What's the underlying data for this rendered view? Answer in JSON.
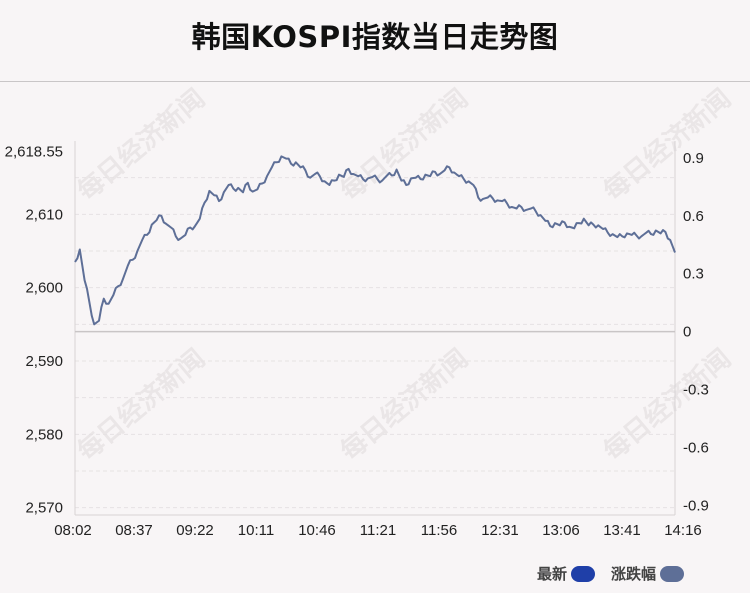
{
  "title": "韩国KOSPI指数当日走势图",
  "watermark": "每日经济新闻",
  "legend": [
    {
      "label": "最新",
      "color": "#1f3fa8"
    },
    {
      "label": "涨跌幅",
      "color": "#5e6f97"
    }
  ],
  "chart_data": {
    "type": "line",
    "title": "韩国KOSPI指数当日走势图",
    "x_ticks": [
      "08:02",
      "08:37",
      "09:22",
      "10:11",
      "10:46",
      "11:21",
      "11:56",
      "12:31",
      "13:06",
      "13:41",
      "14:16"
    ],
    "y_left_ticks": [
      "2,618.55",
      "2,610",
      "2,600",
      "2,590",
      "2,580",
      "2,570"
    ],
    "y_left_tick_values": [
      2618.55,
      2610,
      2600,
      2590,
      2580,
      2570
    ],
    "y_right_ticks": [
      "0.9",
      "0.6",
      "0.3",
      "0",
      "-0.3",
      "-0.6",
      "-0.9"
    ],
    "y_right_tick_values": [
      0.9,
      0.6,
      0.3,
      0,
      -0.3,
      -0.6,
      -0.9
    ],
    "ylim_left": [
      2569,
      2620
    ],
    "baseline": 2594,
    "grid": true,
    "legend_position": "bottom-right",
    "series": [
      {
        "name": "最新",
        "color": "#5e6f97",
        "x": [
          "08:02",
          "08:05",
          "08:08",
          "08:11",
          "08:14",
          "08:17",
          "08:20",
          "08:23",
          "08:26",
          "08:29",
          "08:32",
          "08:35",
          "08:38",
          "08:41",
          "08:44",
          "08:47",
          "08:50",
          "08:53",
          "08:56",
          "08:59",
          "09:02",
          "09:05",
          "09:08",
          "09:11",
          "09:14",
          "09:17",
          "09:20",
          "09:23",
          "09:26",
          "09:29",
          "09:32",
          "09:35",
          "09:38",
          "09:41",
          "09:44",
          "09:47",
          "09:50",
          "09:53",
          "09:56",
          "09:59",
          "10:02",
          "10:05",
          "10:08",
          "10:11",
          "10:14",
          "10:17",
          "10:20",
          "10:23",
          "10:26",
          "10:29",
          "10:32",
          "10:35",
          "10:38",
          "10:41",
          "10:44",
          "10:47",
          "10:50",
          "10:53",
          "10:56",
          "10:59",
          "11:02",
          "11:05",
          "11:08",
          "11:11",
          "11:14",
          "11:17",
          "11:20",
          "11:23",
          "11:26",
          "11:29",
          "11:32",
          "11:35",
          "11:38",
          "11:41",
          "11:44",
          "11:47",
          "11:50",
          "11:53",
          "11:56",
          "11:59",
          "12:02",
          "12:05",
          "12:08",
          "12:11",
          "12:14",
          "12:17",
          "12:20",
          "12:23",
          "12:26",
          "12:29",
          "12:32",
          "12:35",
          "12:38",
          "12:41",
          "12:44",
          "12:47",
          "12:50",
          "12:53",
          "12:56",
          "12:59",
          "13:02",
          "13:05",
          "13:08",
          "13:11",
          "13:14",
          "13:17",
          "13:20",
          "13:23",
          "13:26",
          "13:29",
          "13:32",
          "13:35",
          "13:38",
          "13:41",
          "13:44",
          "13:47",
          "13:50",
          "13:53",
          "13:56",
          "13:59",
          "14:02",
          "14:05",
          "14:08",
          "14:11",
          "14:14",
          "14:16"
        ],
        "values": [
          2603.5,
          2605.2,
          2601.0,
          2598.0,
          2595.0,
          2595.5,
          2598.5,
          2597.8,
          2599.0,
          2600.2,
          2601.2,
          2603.0,
          2603.8,
          2605.0,
          2606.5,
          2607.2,
          2608.6,
          2609.2,
          2609.8,
          2608.7,
          2608.2,
          2607.0,
          2606.7,
          2607.2,
          2608.2,
          2608.4,
          2609.4,
          2611.6,
          2613.2,
          2612.6,
          2611.8,
          2613.0,
          2614.0,
          2613.5,
          2613.6,
          2613.0,
          2614.3,
          2613.1,
          2613.4,
          2614.2,
          2615.2,
          2616.4,
          2617.1,
          2617.9,
          2617.6,
          2616.9,
          2617.1,
          2616.4,
          2616.0,
          2615.0,
          2615.5,
          2615.2,
          2614.5,
          2614.0,
          2614.6,
          2615.4,
          2615.1,
          2616.2,
          2615.5,
          2615.2,
          2614.8,
          2614.9,
          2615.1,
          2614.8,
          2614.6,
          2615.3,
          2615.3,
          2616.1,
          2614.6,
          2614.0,
          2614.9,
          2615.0,
          2614.8,
          2615.4,
          2615.2,
          2615.8,
          2615.5,
          2616.0,
          2616.4,
          2615.7,
          2615.2,
          2614.8,
          2614.5,
          2614.0,
          2612.3,
          2612.1,
          2612.3,
          2612.2,
          2611.9,
          2611.8,
          2611.5,
          2611.0,
          2610.8,
          2611.0,
          2610.6,
          2610.8,
          2610.4,
          2609.9,
          2609.1,
          2608.4,
          2608.8,
          2608.5,
          2608.9,
          2608.3,
          2608.1,
          2608.8,
          2609.4,
          2608.5,
          2608.6,
          2608.5,
          2608.0,
          2607.5,
          2607.3,
          2606.9,
          2607.0,
          2607.4,
          2607.2,
          2607.1,
          2607.0,
          2607.5,
          2607.3,
          2607.8,
          2607.4,
          2607.6,
          2606.5,
          2604.8
        ]
      }
    ]
  }
}
